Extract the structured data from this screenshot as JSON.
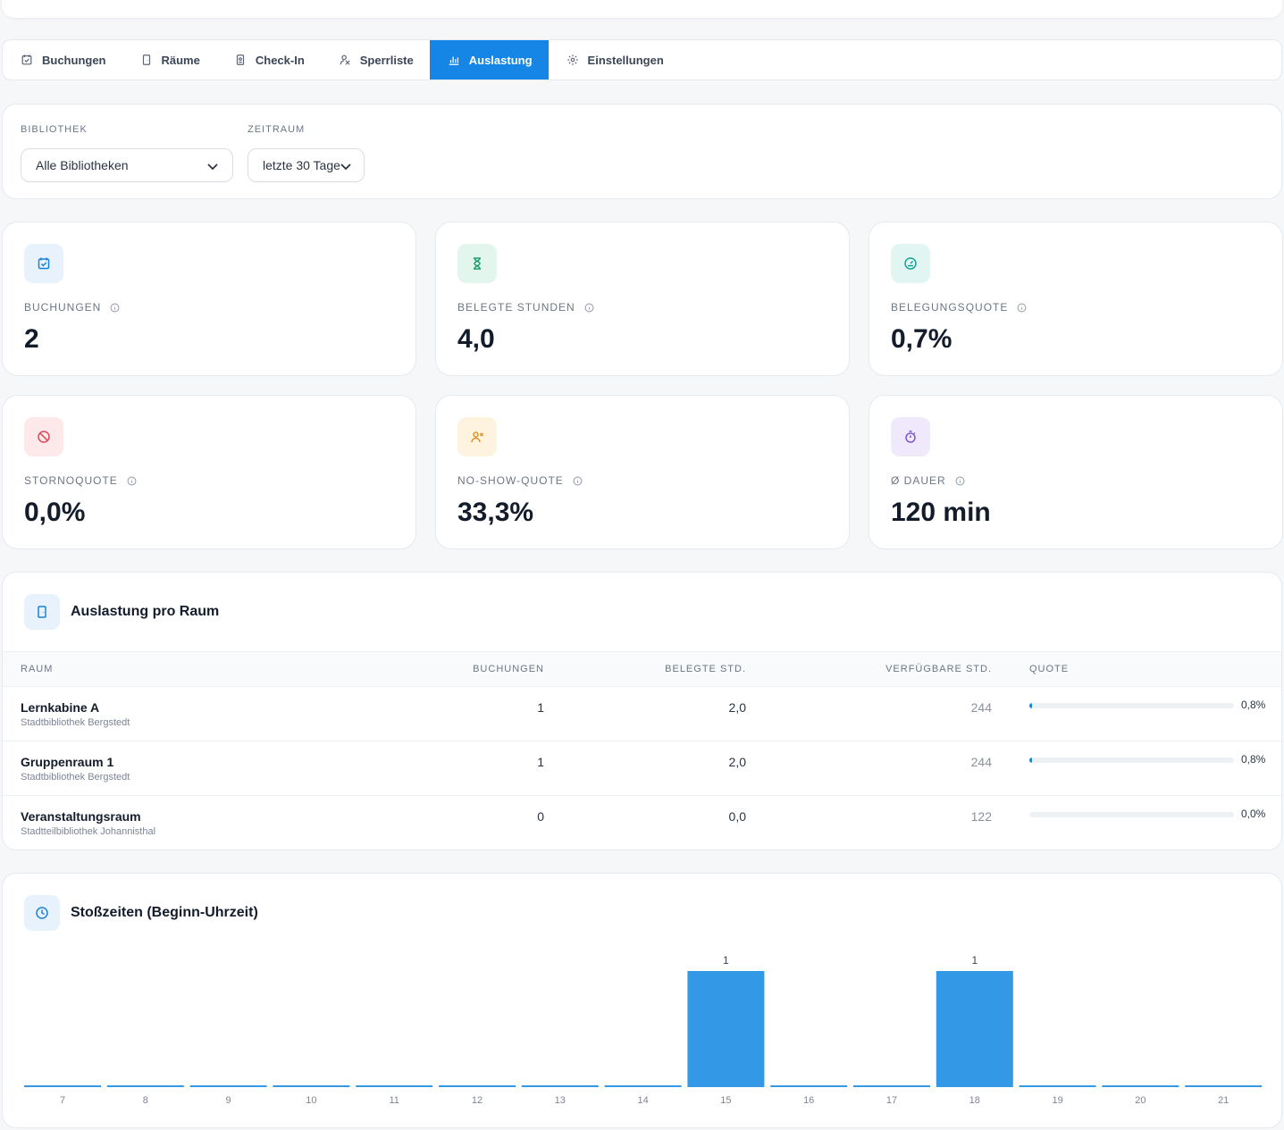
{
  "tabs": [
    {
      "label": "Buchungen",
      "icon": "calendar-check-icon",
      "active": false
    },
    {
      "label": "Räume",
      "icon": "door-icon",
      "active": false
    },
    {
      "label": "Check-In",
      "icon": "badge-icon",
      "active": false
    },
    {
      "label": "Sperrliste",
      "icon": "user-block-icon",
      "active": false
    },
    {
      "label": "Auslastung",
      "icon": "chart-icon",
      "active": true
    },
    {
      "label": "Einstellungen",
      "icon": "gear-icon",
      "active": false
    }
  ],
  "filters": {
    "library_label": "BIBLIOTHEK",
    "library_value": "Alle Bibliotheken",
    "period_label": "ZEITRAUM",
    "period_value": "letzte 30 Tage"
  },
  "kpis": [
    {
      "label": "BUCHUNGEN",
      "value": "2",
      "icon": "calendar-check-icon",
      "color": "#1a82d6",
      "bg": "#e7f2fc"
    },
    {
      "label": "BELEGTE STUNDEN",
      "value": "4,0",
      "icon": "hourglass-icon",
      "color": "#1e9e6a",
      "bg": "#e3f6ee"
    },
    {
      "label": "BELEGUNGSQUOTE",
      "value": "0,7%",
      "icon": "gauge-icon",
      "color": "#14a394",
      "bg": "#e1f6f3"
    },
    {
      "label": "STORNOQUOTE",
      "value": "0,0%",
      "icon": "ban-icon",
      "color": "#e0485b",
      "bg": "#fde8ea"
    },
    {
      "label": "NO-SHOW-QUOTE",
      "value": "33,3%",
      "icon": "user-x-icon",
      "color": "#d8962a",
      "bg": "#fdf3de"
    },
    {
      "label": "Ø DAUER",
      "value": "120 min",
      "icon": "stopwatch-icon",
      "color": "#7a56d1",
      "bg": "#efe9fb"
    }
  ],
  "rooms": {
    "title": "Auslastung pro Raum",
    "columns": [
      "RAUM",
      "BUCHUNGEN",
      "BELEGTE STD.",
      "VERFÜGBARE STD.",
      "QUOTE"
    ],
    "rows": [
      {
        "name": "Lernkabine A",
        "library": "Stadtbibliothek Bergstedt",
        "bookings": "1",
        "hours": "2,0",
        "available": "244",
        "quote": "0,8%",
        "quote_value": 0.8
      },
      {
        "name": "Gruppenraum 1",
        "library": "Stadtbibliothek Bergstedt",
        "bookings": "1",
        "hours": "2,0",
        "available": "244",
        "quote": "0,8%",
        "quote_value": 0.8
      },
      {
        "name": "Veranstaltungsraum",
        "library": "Stadtteilbibliothek Johannisthal",
        "bookings": "0",
        "hours": "0,0",
        "available": "122",
        "quote": "0,0%",
        "quote_value": 0.0
      }
    ]
  },
  "peak": {
    "title": "Stoßzeiten (Beginn-Uhrzeit)"
  },
  "chart_data": {
    "type": "bar",
    "categories": [
      "7",
      "8",
      "9",
      "10",
      "11",
      "12",
      "13",
      "14",
      "15",
      "16",
      "17",
      "18",
      "19",
      "20",
      "21"
    ],
    "values": [
      0,
      0,
      0,
      0,
      0,
      0,
      0,
      0,
      1,
      0,
      0,
      1,
      0,
      0,
      0
    ],
    "title": "Stoßzeiten (Beginn-Uhrzeit)",
    "xlabel": "",
    "ylabel": "",
    "ylim": [
      0,
      1
    ],
    "bar_color": "#3399e6",
    "grid": false
  }
}
